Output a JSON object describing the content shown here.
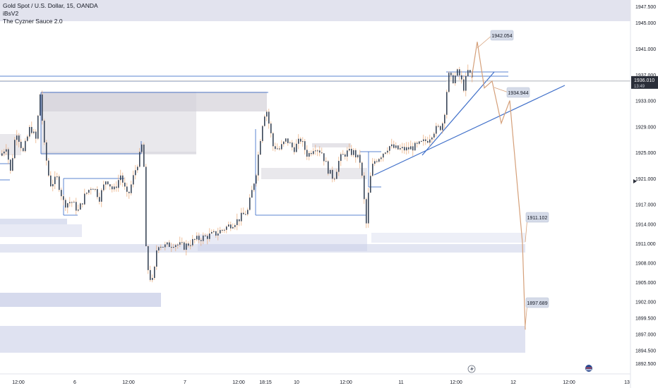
{
  "header": {
    "title": "Gold Spot / U.S. Dollar, 15, OANDA",
    "indicator_1": "iBsV2",
    "indicator_2": "The Cyzner Sauce 2.0"
  },
  "price_badge": {
    "value": "1936.010",
    "timer": "13:49"
  },
  "colors": {
    "zone": "#c5cbe6",
    "zone_gray": "#d4d1d9",
    "trend_line": "#3f6fc9",
    "projection": "#d5a07a",
    "candle_up": "#3a4658",
    "candle_down": "#3a4658",
    "wick": "#e6a574",
    "badge_bg": "#2a2e39"
  },
  "projection_labels": [
    "1942.054",
    "1934.944",
    "1911.102",
    "1897.689"
  ],
  "bottom_icons": [
    "lightning-icon",
    "flag-icon"
  ],
  "chart_data": {
    "type": "candlestick",
    "symbol": "Gold Spot / U.S. Dollar",
    "timeframe": "15",
    "source": "OANDA",
    "y_axis": {
      "ticks": [
        "1947.500",
        "1945.000",
        "1941.000",
        "1937.000",
        "1933.000",
        "1929.000",
        "1925.000",
        "1921.000",
        "1917.000",
        "1914.000",
        "1911.000",
        "1908.000",
        "1905.000",
        "1902.000",
        "1899.500",
        "1897.000",
        "1894.500",
        "1892.500"
      ],
      "range": [
        1892.5,
        1948.5
      ]
    },
    "x_axis": {
      "ticks": [
        "12:00",
        "6",
        "12:00",
        "7",
        "12:00",
        "18:15",
        "10",
        "12:00",
        "11",
        "12:00",
        "12",
        "12:00",
        "13"
      ]
    },
    "price_path": [
      [
        0,
        1924.5
      ],
      [
        8,
        1926
      ],
      [
        14,
        1922
      ],
      [
        22,
        1928.5
      ],
      [
        32,
        1925
      ],
      [
        42,
        1929
      ],
      [
        50,
        1927
      ],
      [
        56,
        1934
      ],
      [
        62,
        1926
      ],
      [
        70,
        1920
      ],
      [
        80,
        1921
      ],
      [
        90,
        1917
      ],
      [
        100,
        1917.5
      ],
      [
        110,
        1916
      ],
      [
        120,
        1918.5
      ],
      [
        130,
        1920
      ],
      [
        140,
        1918
      ],
      [
        150,
        1921
      ],
      [
        160,
        1919
      ],
      [
        170,
        1921.5
      ],
      [
        180,
        1918
      ],
      [
        190,
        1922
      ],
      [
        196,
        1924
      ],
      [
        202,
        1927
      ],
      [
        206,
        1910
      ],
      [
        210,
        1906
      ],
      [
        216,
        1905
      ],
      [
        222,
        1911
      ],
      [
        232,
        1910.5
      ],
      [
        245,
        1911
      ],
      [
        260,
        1910.5
      ],
      [
        275,
        1911.5
      ],
      [
        290,
        1912
      ],
      [
        305,
        1912.5
      ],
      [
        320,
        1913.5
      ],
      [
        335,
        1914.5
      ],
      [
        350,
        1916
      ],
      [
        362,
        1922
      ],
      [
        370,
        1929
      ],
      [
        376,
        1932
      ],
      [
        380,
        1929.5
      ],
      [
        386,
        1926
      ],
      [
        395,
        1925.5
      ],
      [
        405,
        1927
      ],
      [
        415,
        1925.5
      ],
      [
        425,
        1927
      ],
      [
        435,
        1924.5
      ],
      [
        445,
        1926
      ],
      [
        455,
        1925
      ],
      [
        465,
        1922
      ],
      [
        472,
        1921
      ],
      [
        480,
        1924
      ],
      [
        490,
        1925
      ],
      [
        500,
        1925
      ],
      [
        510,
        1923.5
      ],
      [
        518,
        1914
      ],
      [
        522,
        1920
      ],
      [
        528,
        1923.5
      ],
      [
        538,
        1924.5
      ],
      [
        550,
        1926
      ],
      [
        562,
        1925.5
      ],
      [
        575,
        1925.5
      ],
      [
        590,
        1926
      ],
      [
        605,
        1927
      ],
      [
        615,
        1928.5
      ],
      [
        625,
        1929
      ],
      [
        630,
        1932
      ],
      [
        634,
        1937
      ],
      [
        640,
        1936
      ],
      [
        648,
        1937.5
      ],
      [
        656,
        1935
      ],
      [
        662,
        1937.5
      ],
      [
        668,
        1936.5
      ]
    ],
    "projection": [
      1936.5,
      1942.054,
      1934.944,
      1936,
      1929.5,
      1933,
      1911.102,
      1897.689
    ],
    "horizontal_level": 1936.01
  }
}
